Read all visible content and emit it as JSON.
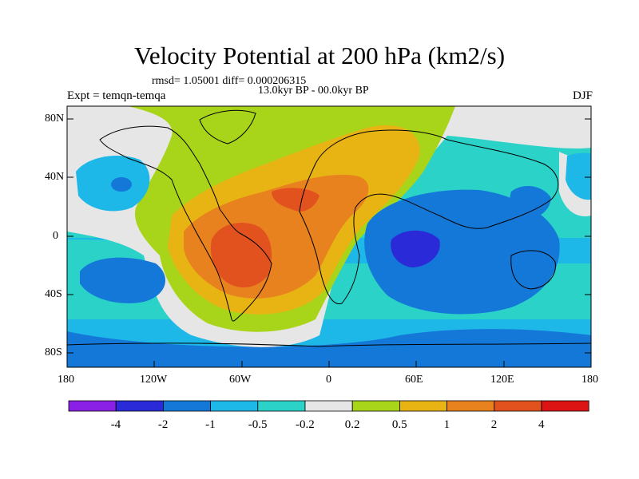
{
  "title": "Velocity Potential at 200 hPa (km2/s)",
  "stats_line": "rmsd= 1.05001 diff= 0.000206315",
  "period_line": "13.0kyr BP - 00.0kyr BP",
  "experiment": "Expt = temqn-temqa",
  "season": "DJF",
  "map": {
    "lat_labels": [
      "80N",
      "40N",
      "0",
      "40S",
      "80S"
    ],
    "lon_labels": [
      "180",
      "120W",
      "60W",
      "0",
      "60E",
      "120E",
      "180"
    ]
  },
  "colorbar": {
    "labels": [
      "-4",
      "-2",
      "-1",
      "-0.5",
      "-0.2",
      "0.2",
      "0.5",
      "1",
      "2",
      "4"
    ],
    "colors": [
      "#8a1fe6",
      "#2a2ad8",
      "#1478d8",
      "#1eb8e8",
      "#2ad2c8",
      "#e6e6e6",
      "#a8d41a",
      "#e8b414",
      "#e8821e",
      "#e2521e",
      "#dc1414"
    ]
  }
}
